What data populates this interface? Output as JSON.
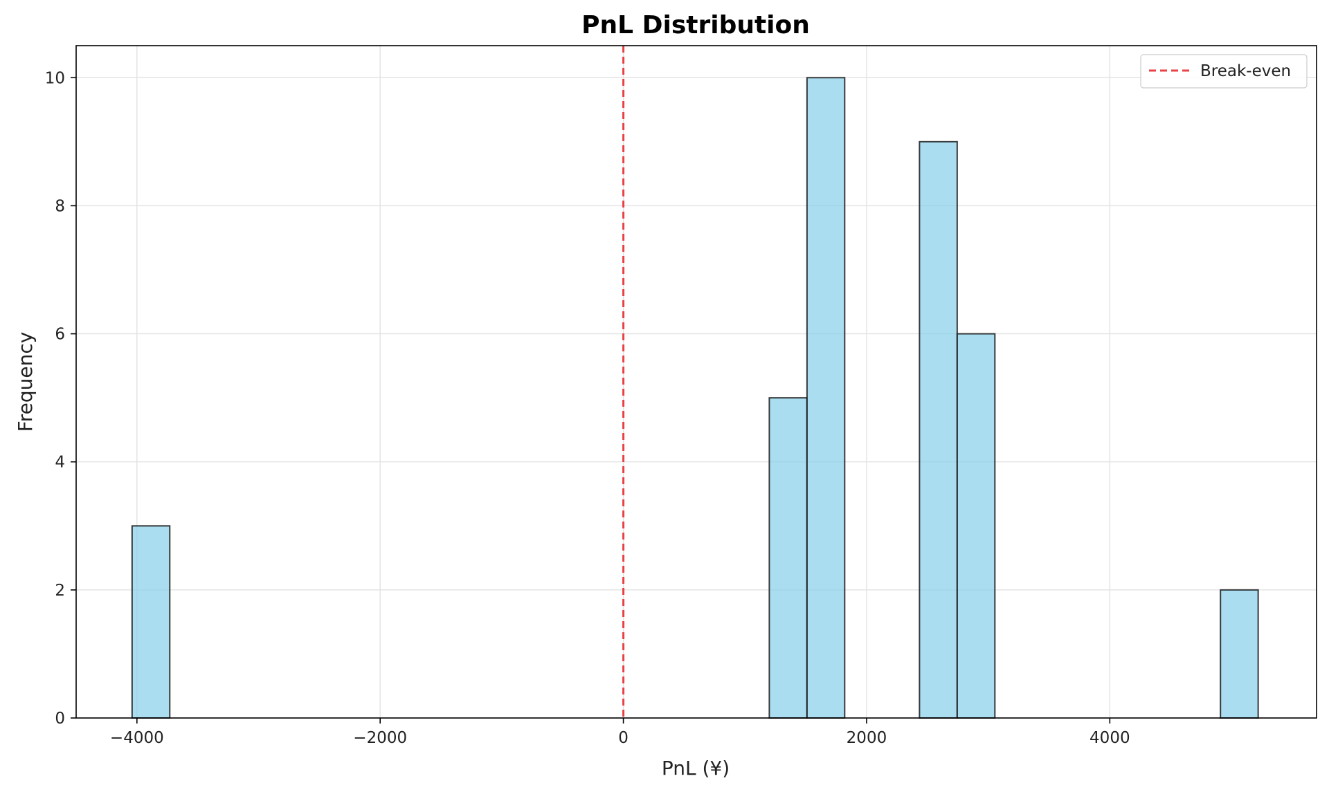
{
  "chart_data": {
    "type": "bar",
    "title": "PnL Distribution",
    "xlabel": "PnL (¥)",
    "ylabel": "Frequency",
    "xlim": [
      -4500,
      5700
    ],
    "ylim": [
      0,
      10.5
    ],
    "xticks": [
      -4000,
      -2000,
      0,
      2000,
      4000
    ],
    "xtick_labels": [
      "−4000",
      "−2000",
      "0",
      "2000",
      "4000"
    ],
    "yticks": [
      0,
      2,
      4,
      6,
      8,
      10
    ],
    "ytick_labels": [
      "0",
      "2",
      "4",
      "6",
      "8",
      "10"
    ],
    "grid": true,
    "bins": [
      {
        "x0": -4040,
        "x1": -3730,
        "count": 3
      },
      {
        "x0": 1200,
        "x1": 1510,
        "count": 5
      },
      {
        "x0": 1510,
        "x1": 1820,
        "count": 10
      },
      {
        "x0": 2435,
        "x1": 2745,
        "count": 9
      },
      {
        "x0": 2745,
        "x1": 3055,
        "count": 6
      },
      {
        "x0": 4910,
        "x1": 5220,
        "count": 2
      }
    ],
    "bar_color": "#87CEEB",
    "bar_edge_color": "#1a1a1a",
    "reference_line": {
      "x": 0,
      "label": "Break-even",
      "color": "#e8383d",
      "style": "dashed"
    },
    "legend": {
      "position": "top-right",
      "entries": [
        "Break-even"
      ]
    }
  }
}
